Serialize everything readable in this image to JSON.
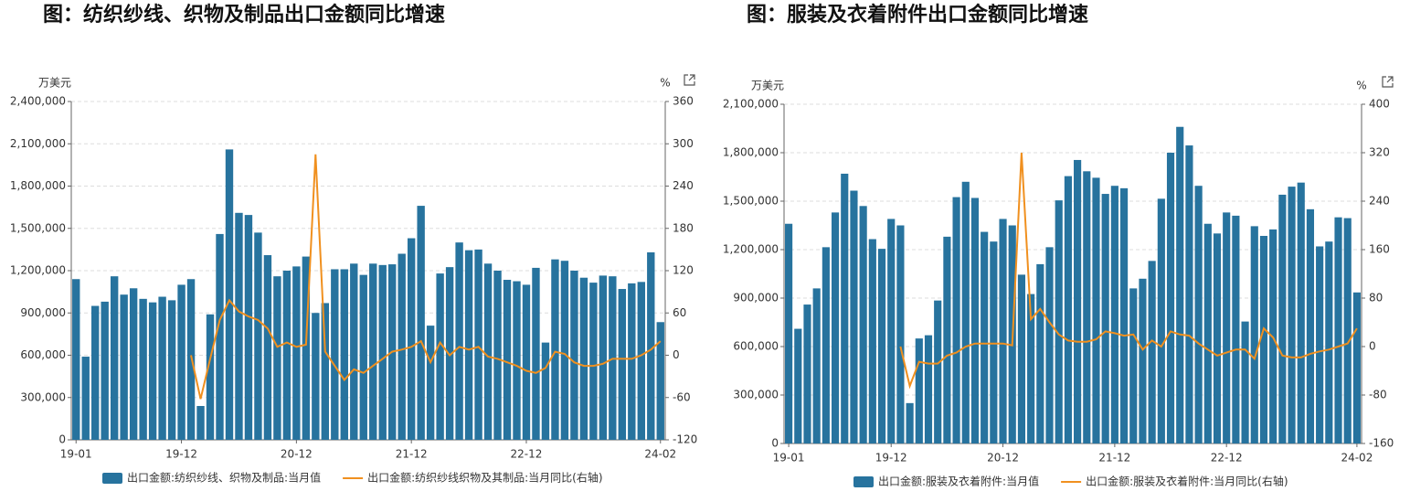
{
  "chart_data": [
    {
      "type": "combo",
      "title": "图：纺织纱线、织物及制品出口金额同比增速",
      "y_label": "万美元",
      "y2_label": "%",
      "categories": [
        "19-01",
        null,
        null,
        null,
        null,
        null,
        null,
        null,
        null,
        null,
        null,
        "19-12",
        null,
        null,
        null,
        null,
        null,
        null,
        null,
        null,
        null,
        null,
        null,
        "20-12",
        null,
        null,
        null,
        null,
        null,
        null,
        null,
        null,
        null,
        null,
        null,
        "21-12",
        null,
        null,
        null,
        null,
        null,
        null,
        null,
        null,
        null,
        null,
        null,
        "22-12",
        null,
        null,
        null,
        null,
        null,
        null,
        null,
        null,
        null,
        null,
        null,
        null,
        null,
        "24-02"
      ],
      "series": [
        {
          "name": "出口金额:纺织纱线、织物及制品:当月值",
          "type": "bar",
          "color": "#27739e",
          "values": [
            1140000,
            590000,
            950000,
            980000,
            1160000,
            1030000,
            1075000,
            1000000,
            975000,
            1015000,
            990000,
            1100000,
            1140000,
            240000,
            890000,
            1460000,
            2060000,
            1610000,
            1595000,
            1470000,
            1310000,
            1160000,
            1200000,
            1230000,
            1300000,
            900000,
            970000,
            1210000,
            1210000,
            1250000,
            1170000,
            1250000,
            1240000,
            1245000,
            1320000,
            1430000,
            1660000,
            810000,
            1180000,
            1225000,
            1400000,
            1345000,
            1350000,
            1250000,
            1200000,
            1135000,
            1125000,
            1100000,
            1220000,
            690000,
            1280000,
            1270000,
            1200000,
            1150000,
            1115000,
            1165000,
            1160000,
            1070000,
            1110000,
            1120000,
            1330000,
            835000
          ]
        },
        {
          "name": "出口金额:纺织纱线织物及其制品:当月同比(右轴)",
          "type": "line",
          "axis": "y2",
          "color": "#f0901f",
          "values": [
            null,
            null,
            null,
            null,
            null,
            null,
            null,
            null,
            null,
            null,
            null,
            null,
            0,
            -62,
            -5,
            50,
            78,
            62,
            55,
            50,
            38,
            12,
            18,
            12,
            15,
            285,
            5,
            -15,
            -35,
            -20,
            -25,
            -15,
            -5,
            5,
            8,
            12,
            20,
            -10,
            18,
            0,
            12,
            8,
            12,
            -2,
            -5,
            -10,
            -15,
            -22,
            -25,
            -18,
            5,
            2,
            -10,
            -15,
            -15,
            -12,
            -5,
            -5,
            -5,
            0,
            8,
            20
          ]
        }
      ],
      "ylim": [
        0,
        2400000
      ],
      "yticks": [
        0,
        {
          "value": 300000,
          "label": "300,000"
        },
        {
          "value": 600000,
          "label": "600,000"
        },
        {
          "value": 900000,
          "label": "900,000"
        },
        {
          "value": 1200000,
          "label": "1,200,000"
        },
        {
          "value": 1500000,
          "label": "1,500,000"
        },
        {
          "value": 1800000,
          "label": "1,800,000"
        },
        {
          "value": 2100000,
          "label": "2,100,000"
        },
        {
          "value": 2400000,
          "label": "2,400,000"
        }
      ],
      "y2lim": [
        -120,
        360
      ],
      "y2ticks": [
        -120,
        -60,
        0,
        60,
        120,
        180,
        240,
        300,
        360
      ],
      "grid": true,
      "legend": "bottom"
    },
    {
      "type": "combo",
      "title": "图：服装及衣着附件出口金额同比增速",
      "y_label": "万美元",
      "y2_label": "%",
      "categories": [
        "19-01",
        null,
        null,
        null,
        null,
        null,
        null,
        null,
        null,
        null,
        null,
        "19-12",
        null,
        null,
        null,
        null,
        null,
        null,
        null,
        null,
        null,
        null,
        null,
        "20-12",
        null,
        null,
        null,
        null,
        null,
        null,
        null,
        null,
        null,
        null,
        null,
        "21-12",
        null,
        null,
        null,
        null,
        null,
        null,
        null,
        null,
        null,
        null,
        null,
        "22-12",
        null,
        null,
        null,
        null,
        null,
        null,
        null,
        null,
        null,
        null,
        null,
        null,
        null,
        "24-02"
      ],
      "series": [
        {
          "name": "出口金额:服装及衣着附件:当月值",
          "type": "bar",
          "color": "#27739e",
          "values": [
            1360000,
            710000,
            860000,
            960000,
            1215000,
            1430000,
            1670000,
            1565000,
            1470000,
            1265000,
            1205000,
            1390000,
            1350000,
            250000,
            650000,
            670000,
            885000,
            1280000,
            1525000,
            1620000,
            1520000,
            1310000,
            1250000,
            1390000,
            1350000,
            1045000,
            925000,
            1110000,
            1215000,
            1505000,
            1655000,
            1755000,
            1685000,
            1645000,
            1545000,
            1595000,
            1580000,
            960000,
            1020000,
            1130000,
            1515000,
            1800000,
            1960000,
            1845000,
            1595000,
            1360000,
            1300000,
            1430000,
            1410000,
            755000,
            1345000,
            1285000,
            1325000,
            1540000,
            1590000,
            1615000,
            1450000,
            1220000,
            1250000,
            1400000,
            1395000,
            935000
          ]
        },
        {
          "name": "出口金额:服装及衣着附件:当月同比(右轴)",
          "type": "line",
          "axis": "y2",
          "color": "#f0901f",
          "values": [
            null,
            null,
            null,
            null,
            null,
            null,
            null,
            null,
            null,
            null,
            null,
            null,
            0,
            -65,
            -25,
            -28,
            -28,
            -15,
            -10,
            0,
            5,
            5,
            5,
            5,
            2,
            320,
            45,
            62,
            40,
            20,
            10,
            8,
            8,
            12,
            25,
            22,
            18,
            20,
            -5,
            10,
            0,
            25,
            20,
            18,
            5,
            -5,
            -15,
            -10,
            -5,
            -5,
            -20,
            30,
            15,
            -15,
            -18,
            -18,
            -12,
            -8,
            -5,
            0,
            5,
            30
          ]
        }
      ],
      "ylim": [
        0,
        2100000
      ],
      "yticks": [
        0,
        {
          "value": 300000,
          "label": "300,000"
        },
        {
          "value": 600000,
          "label": "600,000"
        },
        {
          "value": 900000,
          "label": "900,000"
        },
        {
          "value": 1200000,
          "label": "1,200,000"
        },
        {
          "value": 1500000,
          "label": "1,500,000"
        },
        {
          "value": 1800000,
          "label": "1,800,000"
        },
        {
          "value": 2100000,
          "label": "2,100,000"
        }
      ],
      "y2lim": [
        -160,
        400
      ],
      "y2ticks": [
        -160,
        -80,
        0,
        80,
        160,
        240,
        320,
        400
      ],
      "grid": true,
      "legend": "bottom"
    }
  ]
}
